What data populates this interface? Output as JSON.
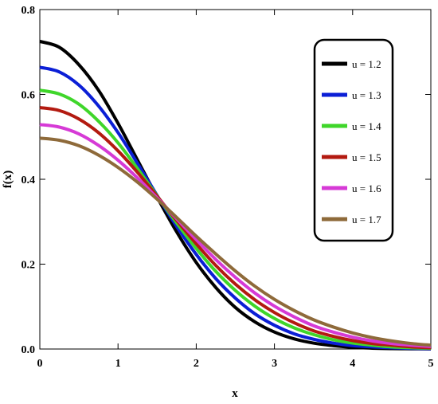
{
  "chart_data": {
    "type": "line",
    "title": "",
    "xlabel": "x",
    "ylabel": "f(x)",
    "xlim": [
      0,
      5
    ],
    "ylim": [
      0,
      0.8
    ],
    "xticks": [
      "0",
      "1",
      "2",
      "3",
      "4",
      "5"
    ],
    "yticks": [
      "0.0",
      "0.2",
      "0.4",
      "0.6",
      "0.8"
    ],
    "grid": false,
    "legend_position": "top-right",
    "x": [
      0,
      0.25,
      0.5,
      0.75,
      1,
      1.25,
      1.5,
      1.75,
      2,
      2.25,
      2.5,
      2.75,
      3,
      3.25,
      3.5,
      3.75,
      4,
      4.25,
      4.5,
      4.75,
      5
    ],
    "series": [
      {
        "name": "u = 1.2",
        "color": "#000000",
        "values": [
          0.725,
          0.711,
          0.67,
          0.61,
          0.532,
          0.445,
          0.358,
          0.276,
          0.204,
          0.145,
          0.098,
          0.064,
          0.04,
          0.024,
          0.014,
          0.008,
          0.004,
          0.002,
          0.001,
          0.0005,
          0.0002
        ]
      },
      {
        "name": "u = 1.3",
        "color": "#0b1fd6",
        "values": [
          0.664,
          0.653,
          0.622,
          0.573,
          0.51,
          0.437,
          0.362,
          0.289,
          0.223,
          0.166,
          0.12,
          0.083,
          0.056,
          0.036,
          0.023,
          0.014,
          0.008,
          0.005,
          0.003,
          0.0015,
          0.0008
        ]
      },
      {
        "name": "u = 1.4",
        "color": "#3fd62a",
        "values": [
          0.61,
          0.601,
          0.577,
          0.537,
          0.486,
          0.425,
          0.361,
          0.297,
          0.237,
          0.183,
          0.138,
          0.101,
          0.072,
          0.05,
          0.034,
          0.022,
          0.014,
          0.009,
          0.005,
          0.003,
          0.002
        ]
      },
      {
        "name": "u = 1.5",
        "color": "#b31a10",
        "values": [
          0.569,
          0.562,
          0.542,
          0.51,
          0.467,
          0.416,
          0.36,
          0.303,
          0.248,
          0.197,
          0.153,
          0.116,
          0.086,
          0.062,
          0.043,
          0.03,
          0.02,
          0.013,
          0.009,
          0.005,
          0.003
        ]
      },
      {
        "name": "u = 1.6",
        "color": "#d63ad6",
        "values": [
          0.529,
          0.523,
          0.507,
          0.48,
          0.445,
          0.403,
          0.356,
          0.307,
          0.258,
          0.211,
          0.169,
          0.132,
          0.101,
          0.076,
          0.055,
          0.04,
          0.028,
          0.019,
          0.013,
          0.009,
          0.006
        ]
      },
      {
        "name": "u = 1.7",
        "color": "#8e6a3a",
        "values": [
          0.497,
          0.492,
          0.479,
          0.457,
          0.428,
          0.393,
          0.353,
          0.31,
          0.266,
          0.224,
          0.184,
          0.148,
          0.117,
          0.091,
          0.069,
          0.052,
          0.038,
          0.027,
          0.019,
          0.013,
          0.009
        ]
      }
    ]
  }
}
